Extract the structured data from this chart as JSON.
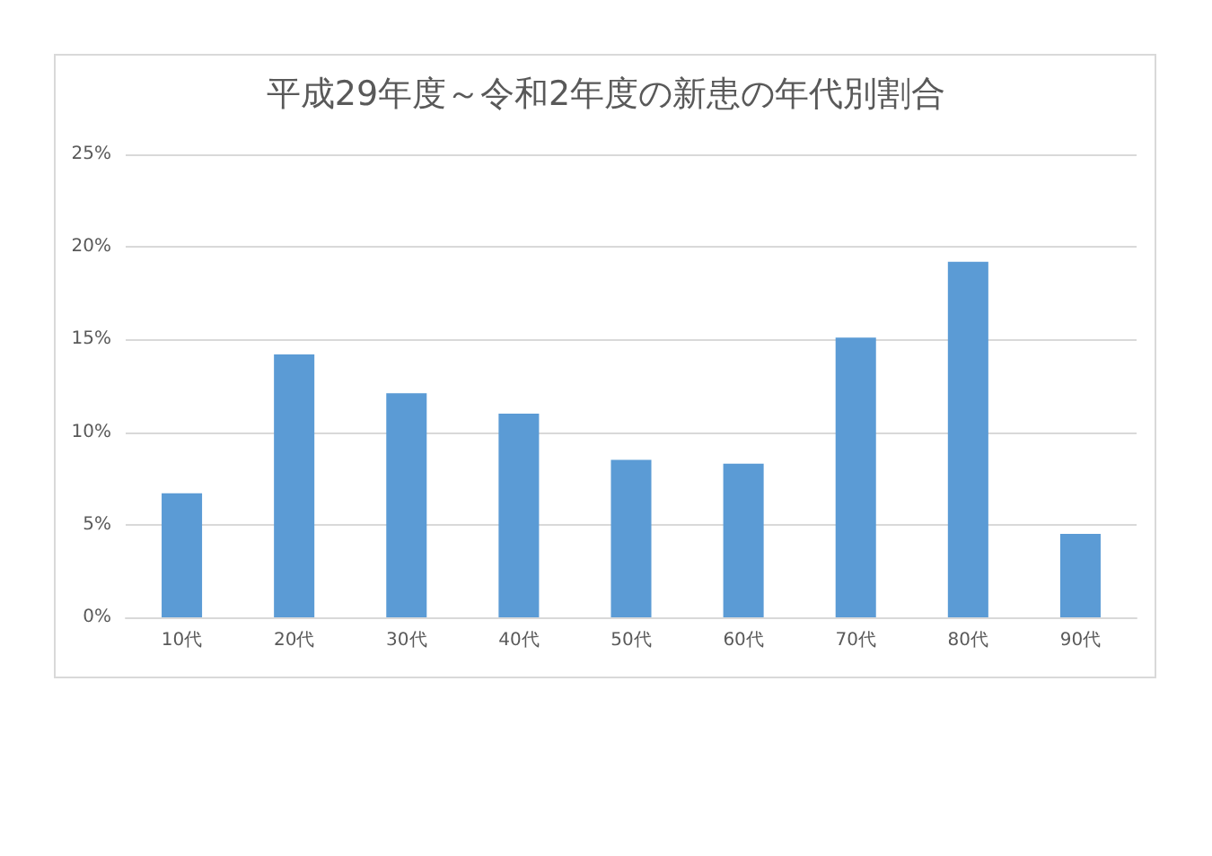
{
  "chart_data": {
    "type": "bar",
    "title": "平成29年度～令和2年度の新患の年代別割合",
    "categories": [
      "10代",
      "20代",
      "30代",
      "40代",
      "50代",
      "60代",
      "70代",
      "80代",
      "90代"
    ],
    "values": [
      6.7,
      14.2,
      12.1,
      11.0,
      8.5,
      8.3,
      15.1,
      19.2,
      4.5
    ],
    "color": "#5b9bd5",
    "ylim": [
      0,
      25
    ],
    "yticks": [
      {
        "value": 0,
        "label": "0%"
      },
      {
        "value": 5,
        "label": "5%"
      },
      {
        "value": 10,
        "label": "10%"
      },
      {
        "value": 15,
        "label": "15%"
      },
      {
        "value": 20,
        "label": "20%"
      },
      {
        "value": 25,
        "label": "25%"
      }
    ],
    "grid": "y"
  }
}
